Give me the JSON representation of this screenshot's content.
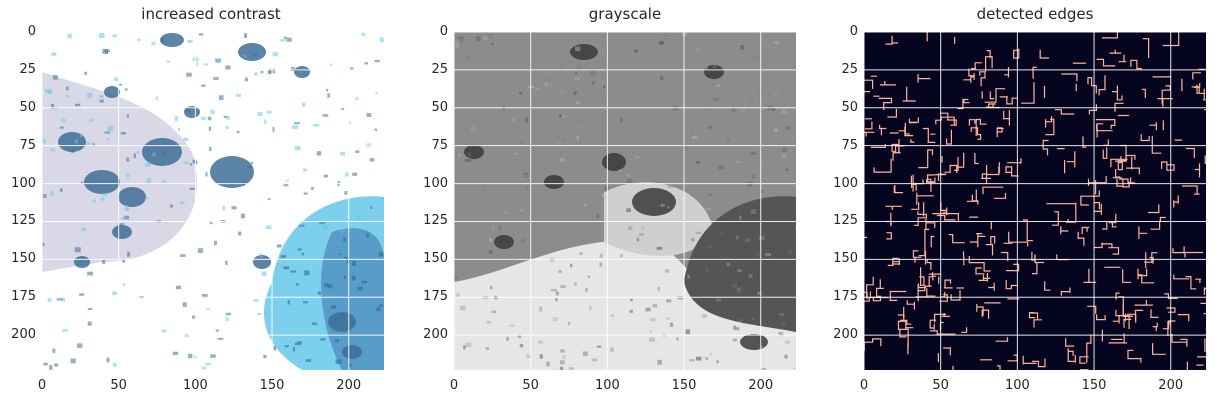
{
  "panels": [
    {
      "title": "increased contrast",
      "colors": {
        "base": "#ffffff",
        "blob": "#3e6e96",
        "pale": "#c9c7dc",
        "light": "#65c8ea"
      }
    },
    {
      "title": "grayscale",
      "colors": {
        "base": "#8c8c8c",
        "dark": "#3a3a3a",
        "light": "#e6e6e6"
      }
    },
    {
      "title": "detected edges",
      "colors": {
        "base": "#06051f",
        "edge": "#ffb4a0"
      }
    }
  ],
  "axes": {
    "x_ticks": [
      "0",
      "50",
      "100",
      "150",
      "200"
    ],
    "y_ticks": [
      "0",
      "25",
      "50",
      "75",
      "100",
      "125",
      "150",
      "175",
      "200"
    ],
    "x_range": [
      0,
      223
    ],
    "y_range": [
      0,
      223
    ]
  },
  "grid_color": "#ffffff"
}
